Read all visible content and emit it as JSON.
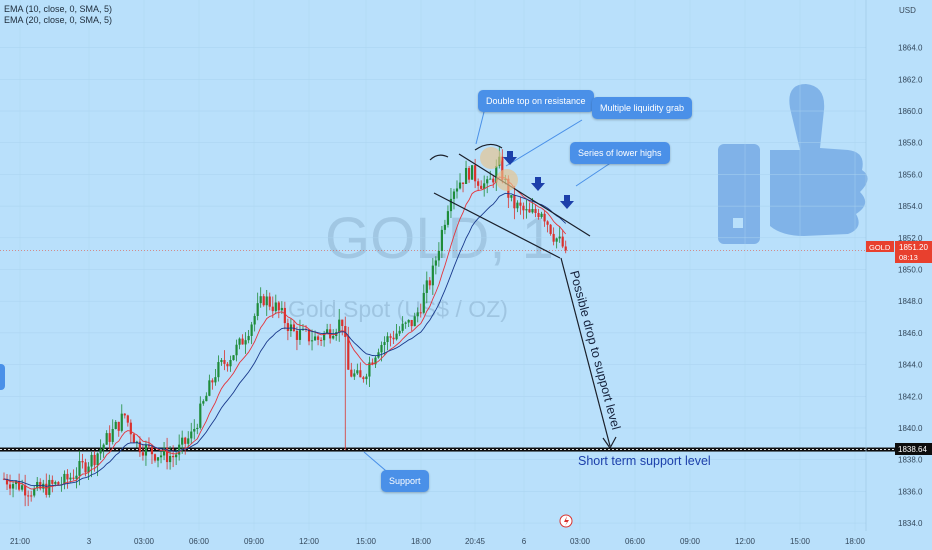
{
  "legend": {
    "ema10": "EMA (10, close, 0, SMA, 5)",
    "ema20": "EMA (20, close, 0, SMA, 5)"
  },
  "watermark": {
    "symbol": "GOLD, 1",
    "name": "Gold Spot (US$ / OZ)"
  },
  "annotations": {
    "double_top": "Double top on resistance",
    "liquidity": "Multiple liquidity grab",
    "lower_highs": "Series of lower highs",
    "drop": "Possible drop to support level",
    "support_label": "Short term support level",
    "support_callout": "Support"
  },
  "price_axis": {
    "currency": "USD",
    "current_symbol": "GOLD",
    "current_price": "1851.20",
    "countdown": "08:13",
    "support_price": "1838.64"
  },
  "colors": {
    "background": "#b9e0fb",
    "up": "#1e8c3a",
    "down": "#d9322e",
    "ema10": "#e4343c",
    "ema20": "#1a3a8c",
    "callout": "#4a90e8",
    "arrow": "#1c3faa"
  },
  "chart_data": {
    "type": "candlestick",
    "ylim": [
      1833.5,
      1866.5
    ],
    "y_ticks": [
      1834,
      1836,
      1838,
      1840,
      1842,
      1844,
      1846,
      1848,
      1850,
      1852,
      1854,
      1856,
      1858,
      1860,
      1862,
      1864
    ],
    "x_ticks": [
      "21:00",
      "3",
      "03:00",
      "06:00",
      "09:00",
      "12:00",
      "15:00",
      "18:00",
      "20:45",
      "6",
      "03:00",
      "06:00",
      "09:00",
      "12:00",
      "15:00",
      "18:00"
    ],
    "support_level": 1838.64,
    "current_price": 1851.2,
    "anchors": [
      [
        0,
        1836.8
      ],
      [
        10,
        1836.0
      ],
      [
        20,
        1836.6
      ],
      [
        30,
        1838.2
      ],
      [
        40,
        1840.8
      ],
      [
        44,
        1839.0
      ],
      [
        50,
        1838.4
      ],
      [
        56,
        1838.2
      ],
      [
        62,
        1839.5
      ],
      [
        70,
        1843.5
      ],
      [
        78,
        1845.2
      ],
      [
        86,
        1848.2
      ],
      [
        90,
        1847.6
      ],
      [
        96,
        1846.0
      ],
      [
        104,
        1845.6
      ],
      [
        112,
        1846.8
      ],
      [
        114,
        1843.6
      ],
      [
        118,
        1843.0
      ],
      [
        124,
        1845.2
      ],
      [
        130,
        1846.0
      ],
      [
        136,
        1846.8
      ],
      [
        142,
        1849.8
      ],
      [
        148,
        1855.0
      ],
      [
        154,
        1856.2
      ],
      [
        160,
        1855.2
      ],
      [
        164,
        1856.6
      ],
      [
        168,
        1854.2
      ],
      [
        174,
        1853.4
      ],
      [
        178,
        1853.8
      ],
      [
        182,
        1852.2
      ],
      [
        186,
        1851.2
      ]
    ]
  }
}
